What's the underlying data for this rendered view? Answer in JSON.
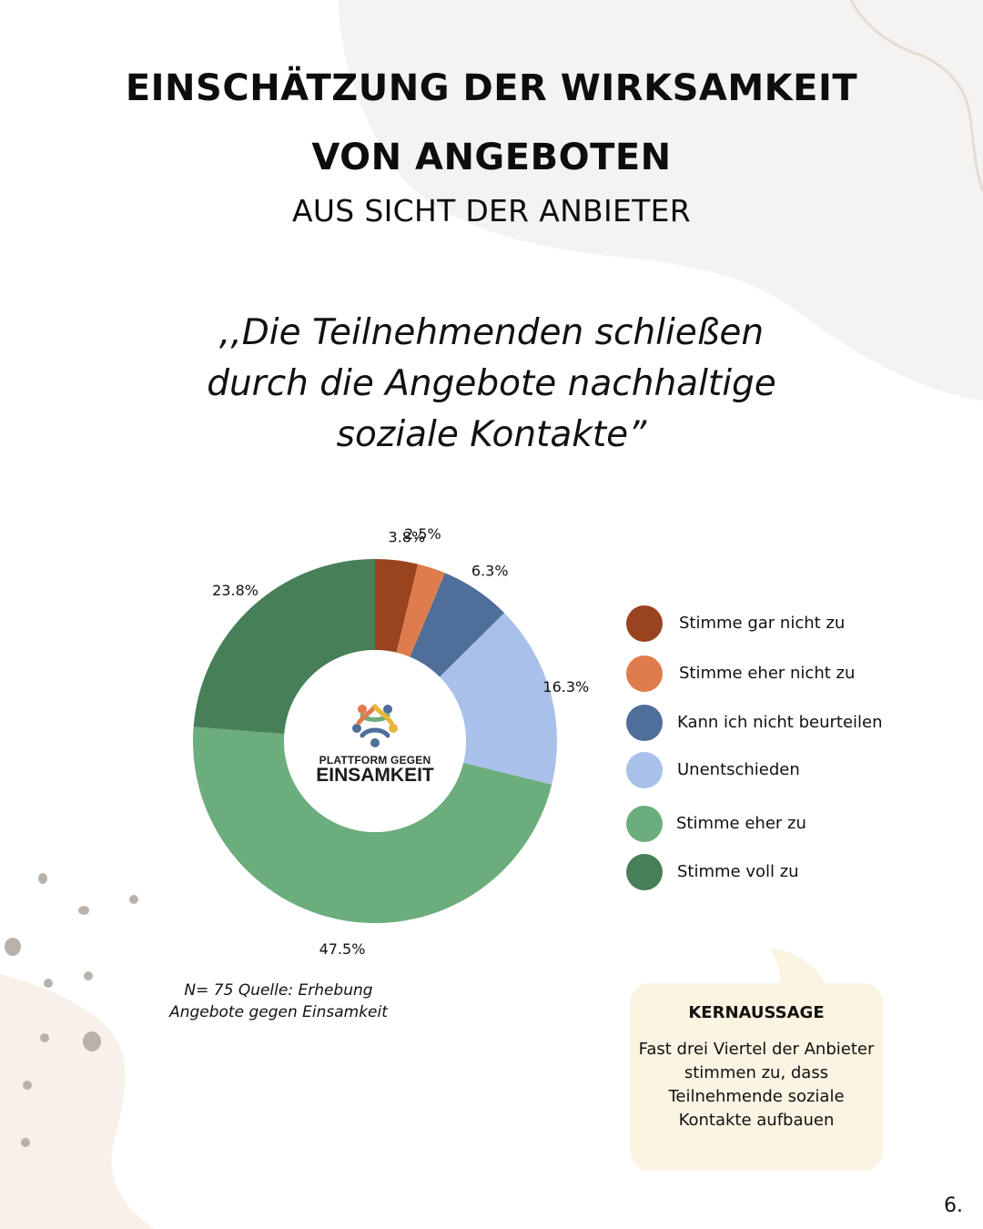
{
  "header": {
    "title_line1": "EINSCHÄTZUNG DER WIRKSAMKEIT",
    "title_line2": "VON ANGEBOTEN",
    "subtitle": "AUS SICHT DER ANBIETER"
  },
  "quote": {
    "line1": ",,Die Teilnehmenden schließen",
    "line2": "durch die Angebote nachhaltige",
    "line3": "soziale Kontakte”"
  },
  "chart_data": {
    "type": "pie",
    "donut": true,
    "categories": [
      "Stimme gar nicht zu",
      "Stimme eher nicht zu",
      "Kann ich nicht beurteilen",
      "Unentschieden",
      "Stimme eher zu",
      "Stimme voll zu"
    ],
    "values": [
      3.8,
      2.5,
      6.3,
      16.3,
      47.5,
      23.8
    ],
    "value_labels": [
      "3.8%",
      "2.5%",
      "6.3%",
      "16.3%",
      "47.5%",
      "23.8%"
    ],
    "colors": [
      "#99441e",
      "#df7c4e",
      "#4f6e9a",
      "#a9c1ea",
      "#6cad7d",
      "#477f58"
    ],
    "legend": "right"
  },
  "logo": {
    "line1": "PLATTFORM GEGEN",
    "line2": "EINSAMKEIT"
  },
  "source": {
    "line1": "N= 75 Quelle: Erhebung",
    "line2": "Angebote gegen Einsamkeit"
  },
  "key_message": {
    "title": "KERNAUSSAGE",
    "line1": "Fast drei Viertel der Anbieter",
    "line2": "stimmen zu, dass",
    "line3": "Teilnehmende soziale",
    "line4": "Kontakte aufbauen"
  },
  "page_number": "6.",
  "colors": {
    "background": "#ffffff",
    "blob": "#f5f3f1",
    "box": "#fbf4e2"
  }
}
